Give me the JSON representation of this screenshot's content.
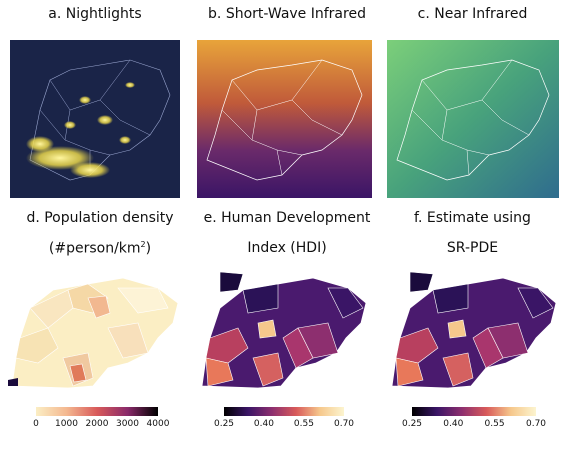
{
  "panels": {
    "a": {
      "title": "a.  Nightlights"
    },
    "b": {
      "title": "b.  Short-Wave Infrared"
    },
    "c": {
      "title": "c.  Near Infrared"
    },
    "d": {
      "title_line1": "d.  Population density",
      "title_line2_pre": "(#person/km",
      "title_line2_sup": "2",
      "title_line2_post": ")",
      "colorbar_ticks": [
        "0",
        "1000",
        "2000",
        "3000",
        "4000"
      ]
    },
    "e": {
      "title_line1": "e.  Human Development",
      "title_line2": "Index (HDI)",
      "colorbar_ticks": [
        "0.25",
        "0.40",
        "0.55",
        "0.70"
      ]
    },
    "f": {
      "title_line1": "f.  Estimate using",
      "title_line2": "SR-PDE",
      "colorbar_ticks": [
        "0.25",
        "0.40",
        "0.55",
        "0.70"
      ]
    }
  },
  "colors": {
    "night_bg": "#1a2448",
    "night_light": "#f5e04a",
    "swir_hot": "#e8a43a",
    "swir_cold": "#3b1566",
    "nir_green": "#5dba78",
    "nir_blue": "#2f6c8e",
    "density_low": "#fbeec4",
    "density_high": "#e07a5a",
    "hdi_low": "#1a0b3c",
    "hdi_mid": "#a9366d",
    "hdi_high": "#f6c88c"
  }
}
